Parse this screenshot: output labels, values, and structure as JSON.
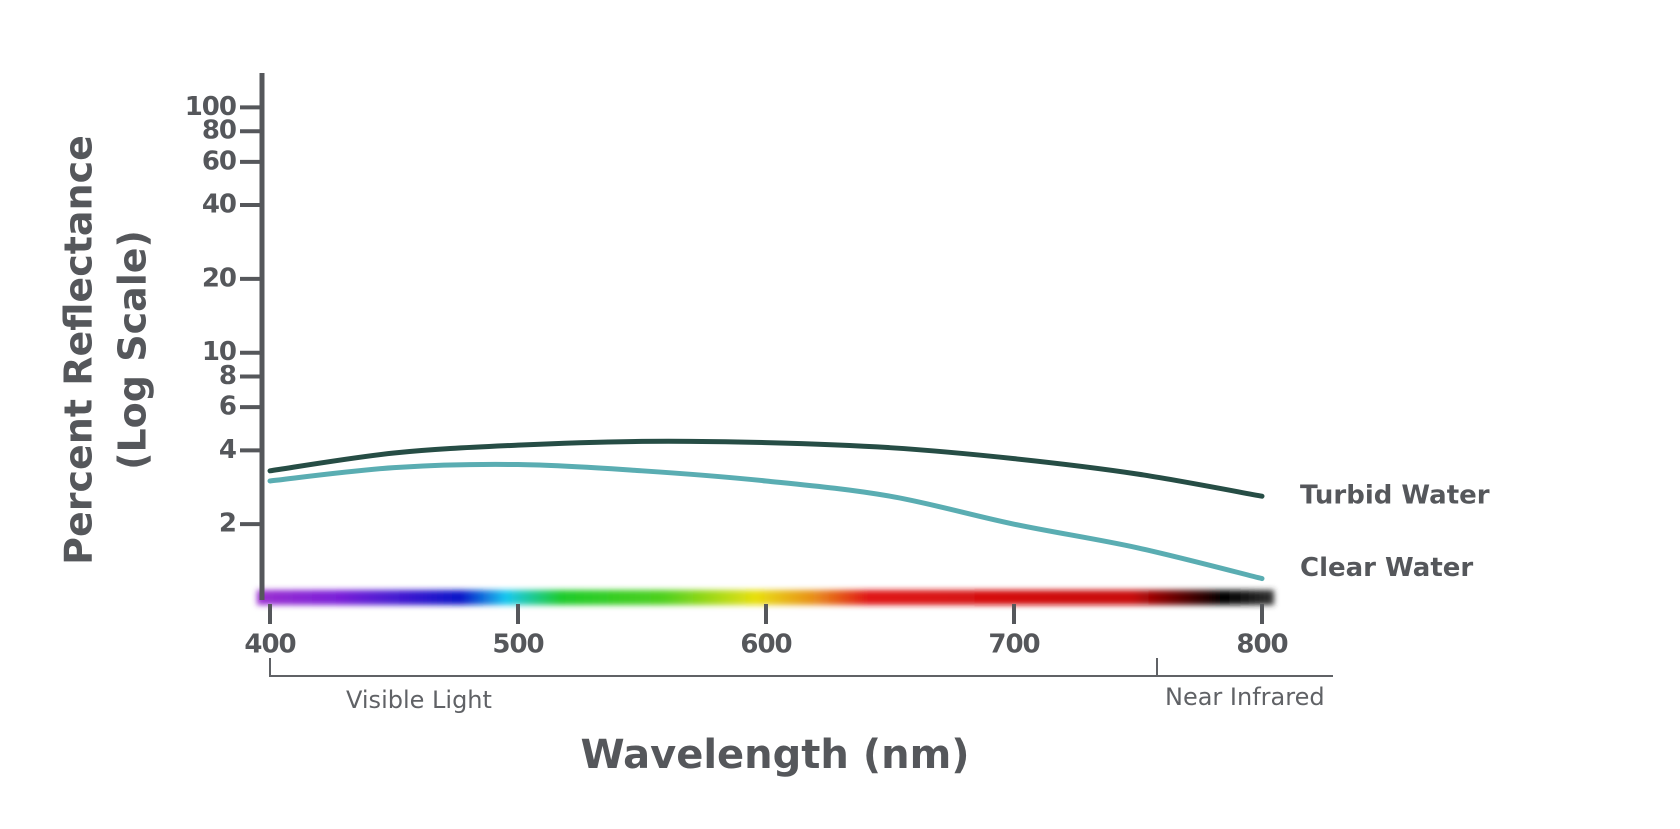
{
  "chart_data": {
    "type": "line",
    "x_label": "Wavelength (nm)",
    "y_label": [
      "Percent Reflectance",
      "(Log Scale)"
    ],
    "log_scale": true,
    "x": [
      400,
      450,
      500,
      550,
      600,
      650,
      700,
      750,
      800
    ],
    "series": [
      {
        "name": "Turbid Water",
        "color": "#264d45",
        "values": [
          3.3,
          3.9,
          4.2,
          4.35,
          4.3,
          4.1,
          3.7,
          3.2,
          2.6
        ]
      },
      {
        "name": "Clear Water",
        "color": "#5aadb2",
        "values": [
          3.0,
          3.4,
          3.5,
          3.3,
          3.0,
          2.6,
          2.0,
          1.6,
          1.2
        ]
      }
    ],
    "xlim": [
      400,
      800
    ],
    "xticks": [
      400,
      500,
      600,
      700,
      800
    ],
    "ylim": [
      1,
      120
    ],
    "yticks": [
      2,
      4,
      6,
      8,
      10,
      20,
      40,
      60,
      80,
      100
    ],
    "annotations": [
      "Visible Light",
      "Near Infrared"
    ]
  }
}
